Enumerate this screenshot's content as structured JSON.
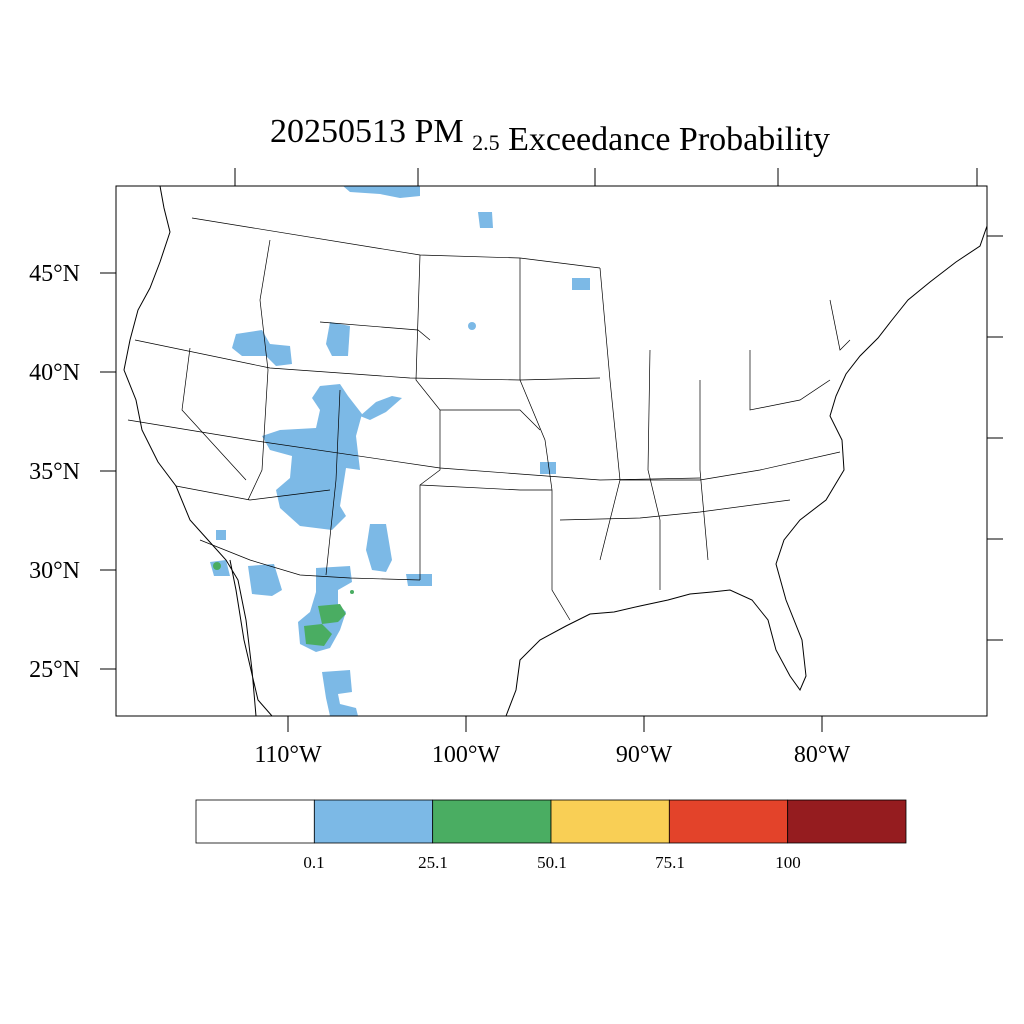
{
  "title": {
    "date": "20250513",
    "pollutant": "PM",
    "pollutant_subscript": "2.5",
    "suffix": "Exceedance Probability"
  },
  "axes": {
    "lon_labels": [
      "110°W",
      "100°W",
      "90°W",
      "80°W"
    ],
    "lat_labels": [
      "45°N",
      "40°N",
      "35°N",
      "30°N",
      "25°N"
    ]
  },
  "colorbar": {
    "colors": [
      "#ffffff",
      "#7cb9e6",
      "#4aad62",
      "#f9cf55",
      "#e3432a",
      "#951c1f"
    ],
    "labels": [
      "0.1",
      "25.1",
      "50.1",
      "75.1",
      "100"
    ]
  },
  "map": {
    "region": "Contiguous United States",
    "probability_classes": [
      {
        "range": "0.1-25.1",
        "color": "#7cb9e6"
      },
      {
        "range": "25.1-50.1",
        "color": "#4aad62"
      }
    ]
  }
}
